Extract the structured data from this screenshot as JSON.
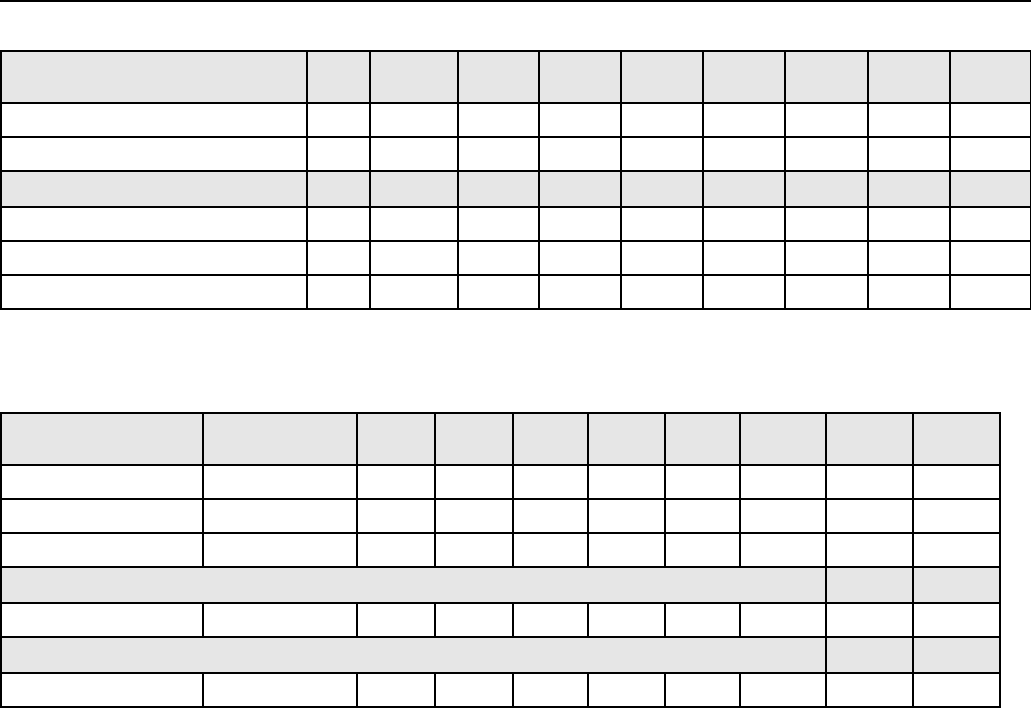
{
  "table_1": {
    "header": [
      "",
      "",
      "",
      "",
      "",
      "",
      "",
      "",
      "",
      ""
    ],
    "rows": [
      {
        "shaded": false,
        "cells": [
          "",
          "",
          "",
          "",
          "",
          "",
          "",
          "",
          "",
          ""
        ]
      },
      {
        "shaded": false,
        "cells": [
          "",
          "",
          "",
          "",
          "",
          "",
          "",
          "",
          "",
          ""
        ]
      },
      {
        "shaded": true,
        "cells": [
          "",
          "",
          "",
          "",
          "",
          "",
          "",
          "",
          "",
          ""
        ]
      },
      {
        "shaded": false,
        "cells": [
          "",
          "",
          "",
          "",
          "",
          "",
          "",
          "",
          "",
          ""
        ]
      },
      {
        "shaded": false,
        "cells": [
          "",
          "",
          "",
          "",
          "",
          "",
          "",
          "",
          "",
          ""
        ]
      },
      {
        "shaded": false,
        "cells": [
          "",
          "",
          "",
          "",
          "",
          "",
          "",
          "",
          "",
          ""
        ]
      }
    ]
  },
  "table_2": {
    "header": [
      "",
      "",
      "",
      "",
      "",
      "",
      "",
      "",
      "",
      ""
    ],
    "rows": [
      {
        "shaded": false,
        "merged": false,
        "cells": [
          "",
          "",
          "",
          "",
          "",
          "",
          "",
          "",
          "",
          ""
        ]
      },
      {
        "shaded": false,
        "merged": false,
        "cells": [
          "",
          "",
          "",
          "",
          "",
          "",
          "",
          "",
          "",
          ""
        ]
      },
      {
        "shaded": false,
        "merged": false,
        "cells": [
          "",
          "",
          "",
          "",
          "",
          "",
          "",
          "",
          "",
          ""
        ]
      },
      {
        "shaded": true,
        "merged": true,
        "cells": [
          "",
          "",
          ""
        ]
      },
      {
        "shaded": false,
        "merged": false,
        "cells": [
          "",
          "",
          "",
          "",
          "",
          "",
          "",
          "",
          "",
          ""
        ]
      },
      {
        "shaded": true,
        "merged": true,
        "cells": [
          "",
          "",
          ""
        ]
      },
      {
        "shaded": false,
        "merged": false,
        "cells": [
          "",
          "",
          "",
          "",
          "",
          "",
          "",
          "",
          "",
          ""
        ]
      }
    ]
  }
}
